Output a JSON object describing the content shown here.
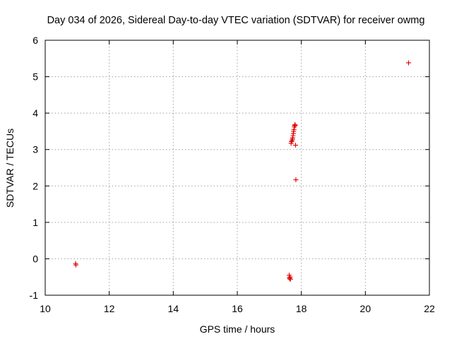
{
  "chart_data": {
    "type": "scatter",
    "title": "Day 034 of 2026, Sidereal Day-to-day VTEC variation (SDTVAR) for receiver owmg",
    "xlabel": "GPS time / hours",
    "ylabel": "SDTVAR / TECUs",
    "xlim": [
      10,
      22
    ],
    "ylim": [
      -1,
      6
    ],
    "xticks": [
      10,
      12,
      14,
      16,
      18,
      20,
      22
    ],
    "xtick_labels": [
      "10",
      "12",
      "14",
      "16",
      "18",
      "20",
      "22"
    ],
    "yticks": [
      -1,
      0,
      1,
      2,
      3,
      4,
      5,
      6
    ],
    "ytick_labels": [
      "-1",
      "0",
      "1",
      "2",
      "3",
      "4",
      "5",
      "6"
    ],
    "grid": true,
    "marker": "+",
    "color": "#e00000",
    "series": [
      {
        "name": "SDTVAR",
        "points": [
          [
            10.95,
            -0.13
          ],
          [
            10.96,
            -0.17
          ],
          [
            17.62,
            -0.45
          ],
          [
            17.63,
            -0.52
          ],
          [
            17.64,
            -0.55
          ],
          [
            17.65,
            -0.5
          ],
          [
            17.66,
            -0.56
          ],
          [
            17.68,
            3.17
          ],
          [
            17.69,
            3.22
          ],
          [
            17.71,
            3.24
          ],
          [
            17.72,
            3.28
          ],
          [
            17.73,
            3.32
          ],
          [
            17.74,
            3.38
          ],
          [
            17.75,
            3.44
          ],
          [
            17.76,
            3.5
          ],
          [
            17.77,
            3.55
          ],
          [
            17.78,
            3.62
          ],
          [
            17.79,
            3.66
          ],
          [
            17.8,
            3.68
          ],
          [
            17.81,
            3.66
          ],
          [
            17.82,
            3.12
          ],
          [
            17.83,
            2.17
          ],
          [
            21.35,
            5.38
          ]
        ]
      }
    ]
  }
}
